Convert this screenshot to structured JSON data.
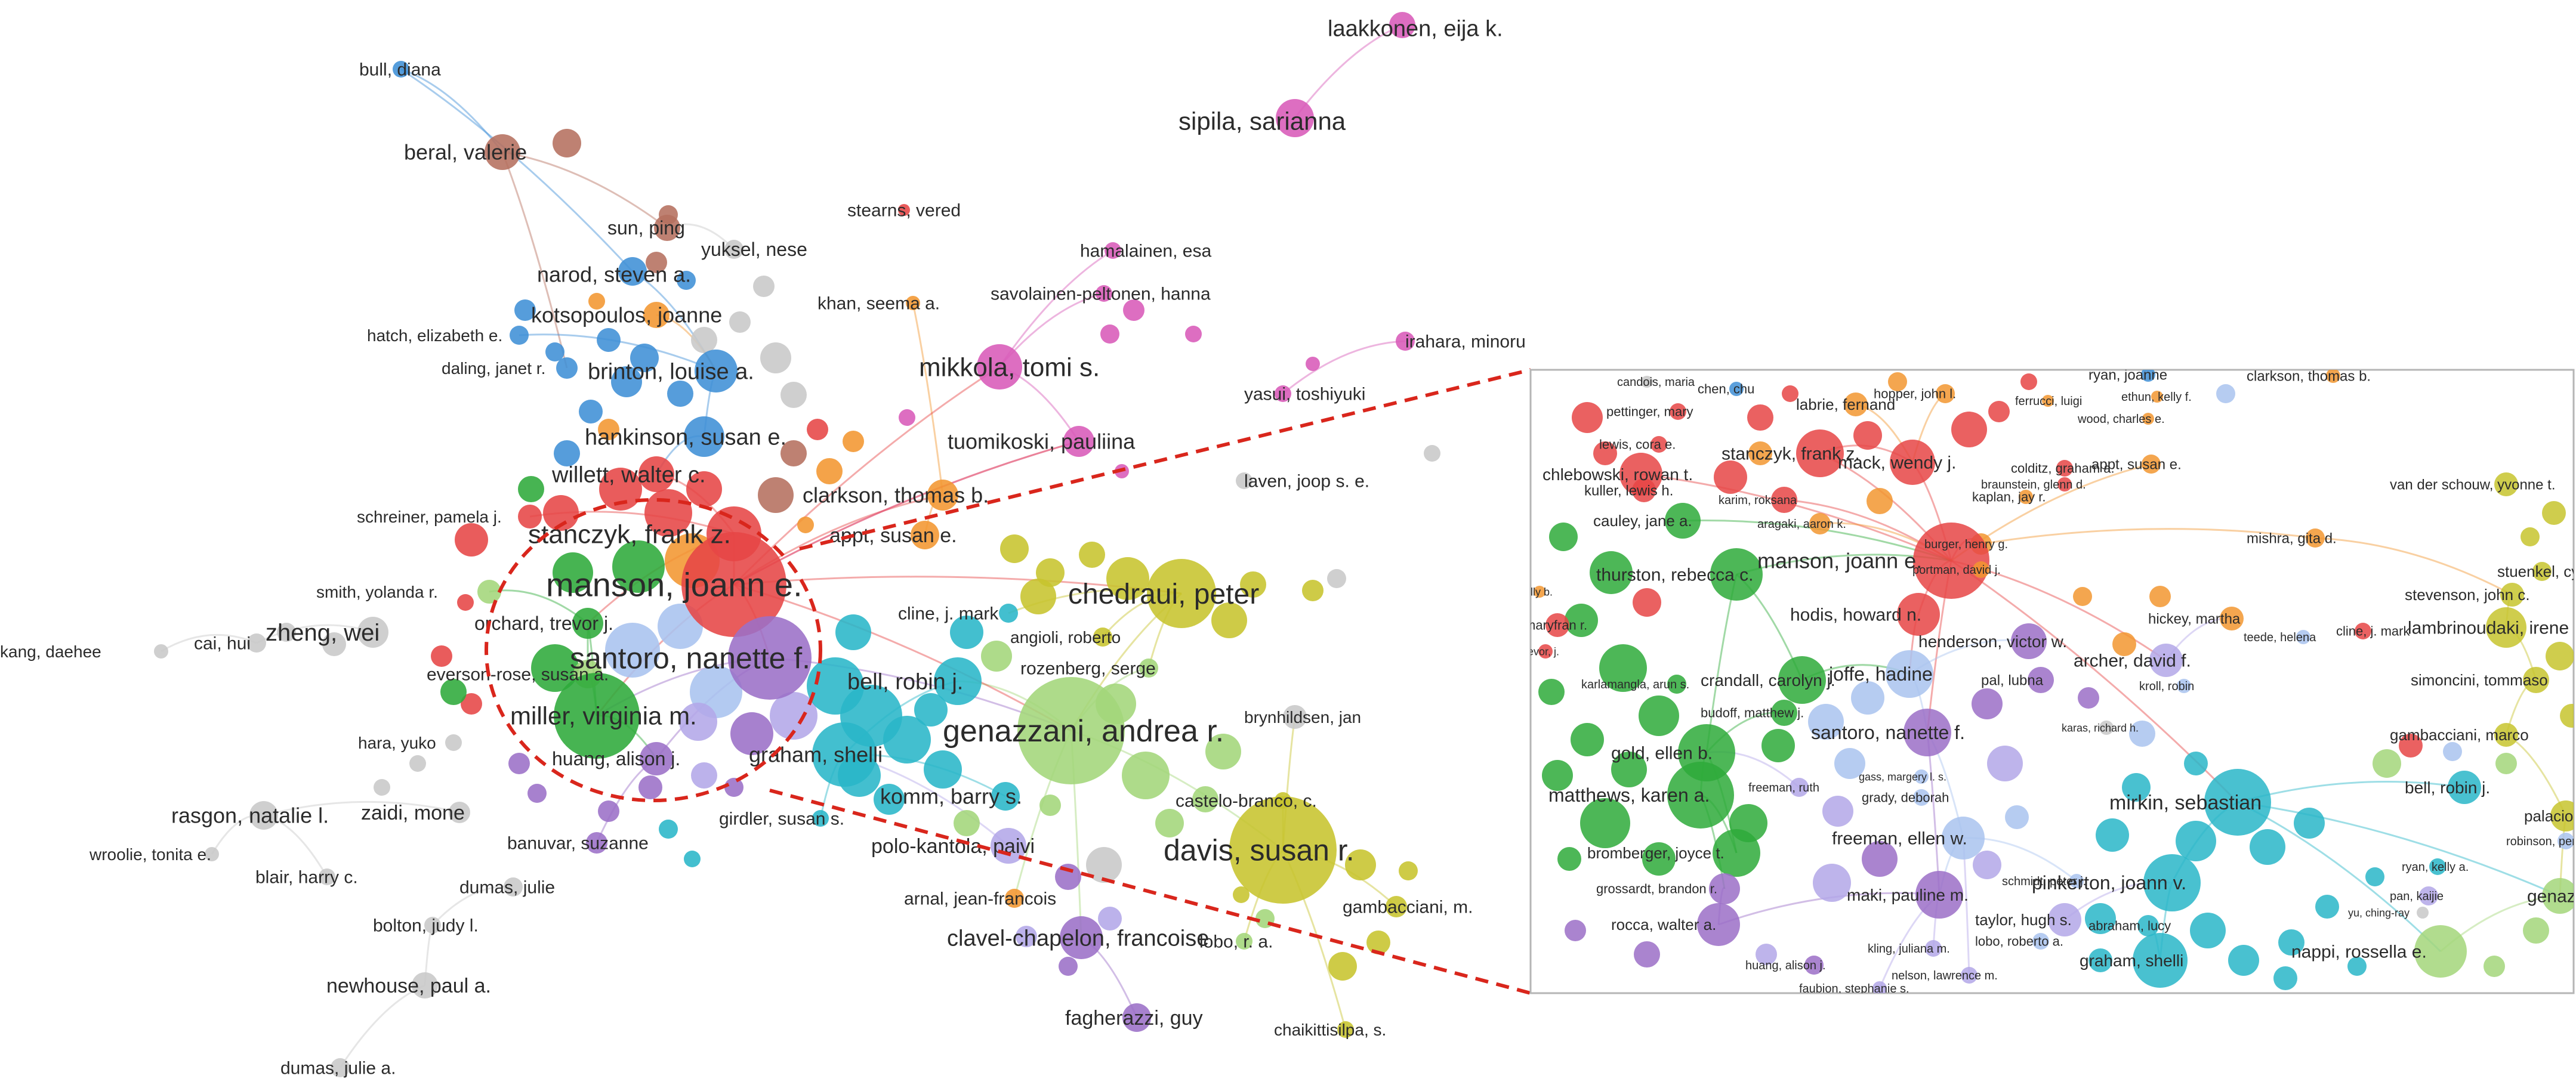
{
  "colors": {
    "red": "#e64545",
    "green": "#2eaa3a",
    "blue": "#3f8fd6",
    "cyan": "#29b6c8",
    "purple": "#9b6fc7",
    "olive": "#c7c42e",
    "lightgreen": "#a3d67a",
    "orange": "#f29630",
    "brown": "#b56f5e",
    "pink": "#d85ab8",
    "lilac": "#b3a7e8",
    "gray": "#c8c8c8",
    "lightblue": "#a9c3ef"
  },
  "main_network": {
    "labels": [
      "laakkonen, eija k.",
      "sipila, sarianna",
      "bull, diana",
      "beral, valerie",
      "stearns, vered",
      "sun, ping",
      "yuksel, nese",
      "hamalainen, esa",
      "narod, steven a.",
      "savolainen-peltonen, hanna",
      "khan, seema a.",
      "kotsopoulos, joanne",
      "irahara, minoru",
      "hatch, elizabeth e.",
      "mikkola, tomi s.",
      "daling, janet r.",
      "brinton, louise a.",
      "yasui, toshiyuki",
      "tuomikoski, pauliina",
      "hankinson, susan e.",
      "willett, walter c.",
      "laven, joop s. e.",
      "clarkson, thomas b.",
      "schreiner, pamela j.",
      "stanczyk, frank z.",
      "appt, susan e.",
      "manson, joann e.",
      "chedraui, peter",
      "smith, yolanda r.",
      "orchard, trevor j.",
      "cline, j. mark",
      "angioli, roberto",
      "kang, daehee",
      "cai, hui",
      "zheng, wei",
      "santoro, nanette f.",
      "rozenberg, serge",
      "everson-rose, susan a.",
      "bell, robin j.",
      "miller, virginia m.",
      "genazzani, andrea r.",
      "brynhildsen, jan",
      "hara, yuko",
      "huang, alison j.",
      "graham, shelli",
      "komm, barry s.",
      "castelo-branco, c.",
      "rasgon, natalie l.",
      "zaidi, mone",
      "girdler, susan s.",
      "davis, susan r.",
      "wroolie, tonita e.",
      "banuvar, suzanne",
      "polo-kantola, paivi",
      "blair, harry c.",
      "dumas, julie",
      "arnal, jean-francois",
      "gambacciani, m.",
      "bolton, judy l.",
      "clavel-chapelon, francoise",
      "lobo, r. a.",
      "newhouse, paul a.",
      "fagherazzi, guy",
      "chaikittisilpa, s.",
      "dumas, julie a."
    ]
  },
  "inset": {
    "labels": [
      "candois, maria",
      "ryan, joanne",
      "clarkson, thomas b.",
      "hopper, john l.",
      "ferrucci, luigi",
      "ethun, kelly f.",
      "pettinger, mary",
      "chen, chu",
      "labrie, fernand",
      "wood, charles e.",
      "lewis, cora e.",
      "stanczyk, frank z.",
      "mack, wendy j.",
      "colditz, graham a.",
      "appt, susan e.",
      "chlebowski, rowan t.",
      "kuller, lewis h.",
      "braunstein, glenn d.",
      "kaplan, jay r.",
      "karim, roksana",
      "van der schouw, yvonne t.",
      "cauley, jane a.",
      "aragaki, aaron k.",
      "mishra, gita d.",
      "burger, henry g.",
      "molly b.",
      "thurston, rebecca c.",
      "manson, joann e.",
      "portman, david j.",
      "stuenkel, cynthia a.",
      "stevenson, john c.",
      "maryfran r.",
      "hodis, howard n.",
      "hickey, martha",
      "teede, helena",
      "lambrinoudaki, irene",
      "henderson, victor w.",
      "cline, j. mark",
      "evor, j.",
      "archer, david f.",
      "kroll, robin",
      "simoncini, tommaso",
      "crandall, carolyn j.",
      "pal, lubna",
      "karlamangla, arun s.",
      "joffe, hadine",
      "budoff, matthew j.",
      "karas, richard h.",
      "gambacciani, marco",
      "santoro, nanette f.",
      "gass, margery l. s.",
      "gold, ellen b.",
      "grady, deborah",
      "freeman, ruth",
      "bell, robin j.",
      "palacios, santiago",
      "mirkin, sebastian",
      "matthews, karen a.",
      "robinson, penelope",
      "bromberger, joyce t.",
      "freeman, ellen w.",
      "schmidt, peter j.",
      "ryan, kelly a.",
      "grossardt, brandon r.",
      "maki, pauline m.",
      "pinkerton, joann v.",
      "pan, kaijie",
      "genazzani, andrea r.",
      "yu, ching-ray",
      "taylor, hugh s.",
      "rocca, walter a.",
      "lobo, roberto a.",
      "abraham, lucy",
      "kling, juliana m.",
      "graham, shelli",
      "huang, alison j.",
      "nappi, rossella e.",
      "nelson, lawrence m.",
      "faubion, stephanie s."
    ]
  }
}
